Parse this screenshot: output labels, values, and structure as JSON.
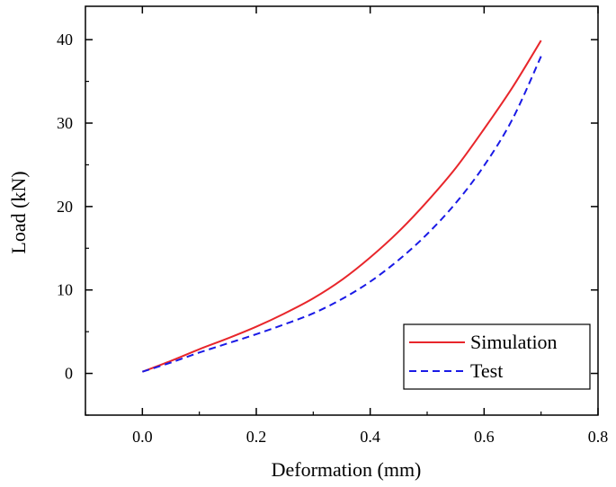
{
  "chart_data": {
    "type": "line",
    "title": "",
    "xlabel": "Deformation (mm)",
    "ylabel": "Load (kN)",
    "xlim": [
      -0.1,
      0.8
    ],
    "ylim": [
      -5,
      44
    ],
    "xticks": [
      0.0,
      0.2,
      0.4,
      0.6,
      0.8
    ],
    "xtick_labels": [
      "0.0",
      "0.2",
      "0.4",
      "0.6",
      "0.8"
    ],
    "yticks": [
      0,
      10,
      20,
      30,
      40
    ],
    "ytick_labels": [
      "0",
      "10",
      "20",
      "30",
      "40"
    ],
    "grid": false,
    "legend_position": "bottom-right",
    "series": [
      {
        "name": "Simulation",
        "color": "#e8262b",
        "style": "solid",
        "x": [
          0.0,
          0.05,
          0.1,
          0.15,
          0.2,
          0.25,
          0.3,
          0.35,
          0.4,
          0.45,
          0.5,
          0.55,
          0.6,
          0.65,
          0.7
        ],
        "y": [
          0.2,
          1.5,
          2.9,
          4.2,
          5.6,
          7.2,
          9.0,
          11.2,
          13.9,
          17.0,
          20.6,
          24.6,
          29.3,
          34.3,
          39.9
        ]
      },
      {
        "name": "Test",
        "color": "#1a1ae6",
        "style": "dashed",
        "x": [
          0.0,
          0.05,
          0.1,
          0.15,
          0.2,
          0.25,
          0.3,
          0.35,
          0.4,
          0.45,
          0.5,
          0.55,
          0.6,
          0.65,
          0.7
        ],
        "y": [
          0.2,
          1.3,
          2.5,
          3.6,
          4.7,
          5.9,
          7.2,
          8.9,
          11.0,
          13.6,
          16.7,
          20.4,
          24.9,
          30.5,
          38.0
        ]
      }
    ]
  }
}
